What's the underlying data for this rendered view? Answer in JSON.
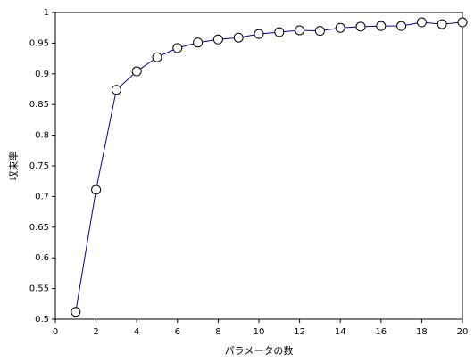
{
  "chart_data": {
    "type": "line",
    "x_label": "パラメータの数",
    "y_label": "収束率",
    "x": [
      1,
      2,
      3,
      4,
      5,
      6,
      7,
      8,
      9,
      10,
      11,
      12,
      13,
      14,
      15,
      16,
      17,
      18,
      19,
      20
    ],
    "series": [
      {
        "color": "#0000aa",
        "values": [
          0.512,
          0.711,
          0.874,
          0.904,
          0.927,
          0.942,
          0.951,
          0.956,
          0.959,
          0.965,
          0.968,
          0.971,
          0.97,
          0.975,
          0.977,
          0.978,
          0.978,
          0.984,
          0.981,
          0.984
        ]
      }
    ],
    "xlim": [
      0,
      20
    ],
    "xticks": [
      0,
      2,
      4,
      6,
      8,
      10,
      12,
      14,
      16,
      18,
      20
    ],
    "ylim": [
      0.5,
      1
    ],
    "yticks": [
      0.5,
      0.55,
      0.6,
      0.65,
      0.7,
      0.75,
      0.8,
      0.85,
      0.9,
      0.95,
      1
    ],
    "grid": false
  }
}
